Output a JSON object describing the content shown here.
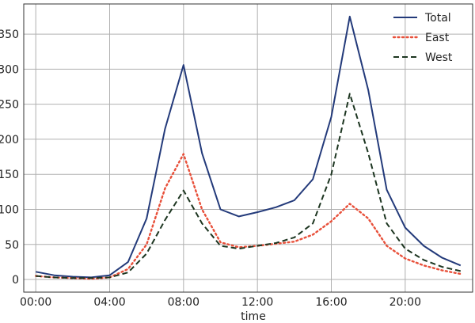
{
  "chart_data": {
    "type": "line",
    "title": "",
    "xlabel": "time",
    "ylabel": "",
    "x": [
      "00:00",
      "01:00",
      "02:00",
      "03:00",
      "04:00",
      "05:00",
      "06:00",
      "07:00",
      "08:00",
      "09:00",
      "10:00",
      "11:00",
      "12:00",
      "13:00",
      "14:00",
      "15:00",
      "16:00",
      "17:00",
      "18:00",
      "19:00",
      "20:00",
      "21:00",
      "22:00",
      "23:00"
    ],
    "x_tick_labels": [
      "00:00",
      "04:00",
      "08:00",
      "12:00",
      "16:00",
      "20:00"
    ],
    "x_tick_hours": [
      0,
      4,
      8,
      12,
      16,
      20
    ],
    "xlim": [
      -0.65,
      23.65
    ],
    "y_tick_values": [
      0,
      50,
      100,
      150,
      200,
      250,
      300,
      350
    ],
    "y_tick_labels": [
      "0",
      "50",
      "100",
      "150",
      "200",
      "250",
      "300",
      "350"
    ],
    "ylim": [
      -18,
      393
    ],
    "grid": true,
    "legend_position": "top-right",
    "series": [
      {
        "name": "Total",
        "color": "#233a7a",
        "style": "solid",
        "values": [
          11,
          6,
          4,
          3,
          6,
          25,
          87,
          215,
          306,
          180,
          100,
          90,
          96,
          103,
          113,
          143,
          232,
          375,
          270,
          128,
          74,
          48,
          31,
          20
        ]
      },
      {
        "name": "East",
        "color": "#e8503a",
        "style": "dotted",
        "values": [
          5,
          3,
          2,
          1,
          3,
          15,
          50,
          130,
          179,
          100,
          53,
          46,
          48,
          51,
          54,
          64,
          83,
          108,
          87,
          48,
          30,
          20,
          13,
          8
        ]
      },
      {
        "name": "West",
        "color": "#1c3520",
        "style": "dashed",
        "values": [
          5,
          3,
          2,
          2,
          3,
          10,
          37,
          85,
          127,
          80,
          48,
          44,
          48,
          52,
          60,
          80,
          150,
          265,
          180,
          80,
          44,
          28,
          18,
          12
        ]
      }
    ]
  }
}
